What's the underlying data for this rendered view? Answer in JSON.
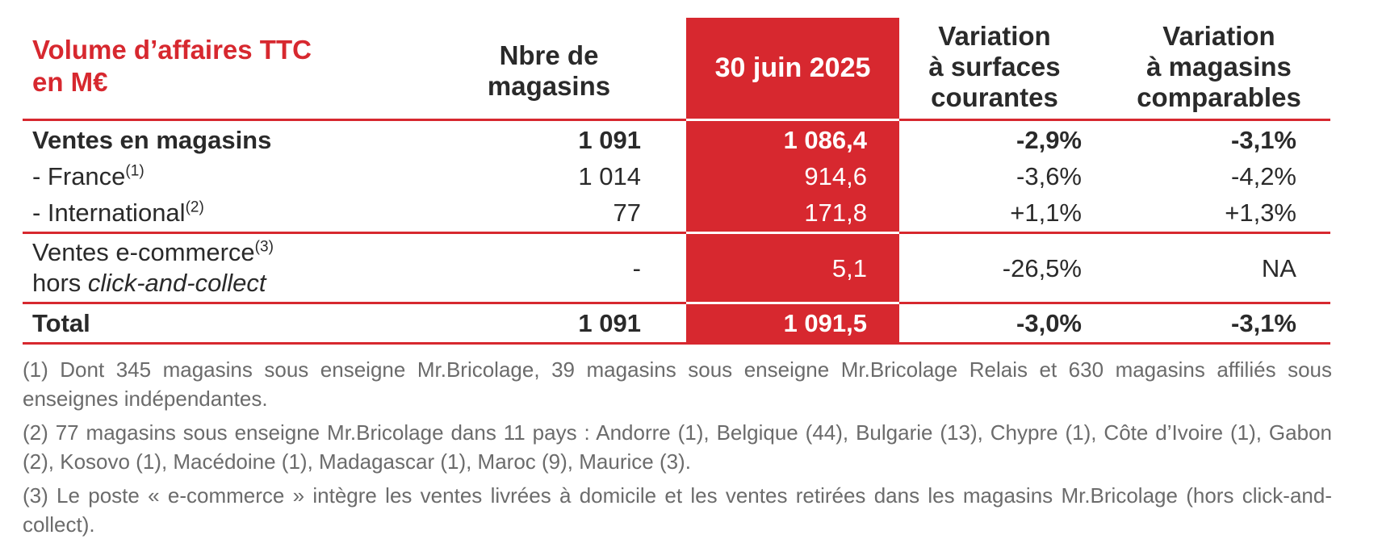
{
  "header": {
    "title_line1": "Volume d’affaires TTC",
    "title_line2": "en M€",
    "nbre_line1": "Nbre de",
    "nbre_line2": "magasins",
    "date": "30 juin 2025",
    "var1_line1": "Variation",
    "var1_line2": "à surfaces",
    "var1_line3": "courantes",
    "var2_line1": "Variation",
    "var2_line2": "à magasins",
    "var2_line3": "comparables"
  },
  "rows": [
    {
      "label": "Ventes en magasins",
      "sup": "",
      "nbre": "1 091",
      "value": "1 086,4",
      "var_courantes": "-2,9%",
      "var_comparables": "-3,1%"
    },
    {
      "label": "- France",
      "sup": "(1)",
      "nbre": "1 014",
      "value": "914,6",
      "var_courantes": "-3,6%",
      "var_comparables": "-4,2%"
    },
    {
      "label": "- International",
      "sup": "(2)",
      "nbre": "77",
      "value": "171,8",
      "var_courantes": "+1,1%",
      "var_comparables": "+1,3%"
    },
    {
      "label": "Ventes e-commerce",
      "sup": "(3)",
      "label_line2": "hors ",
      "label_line2_italic": "click-and-collect",
      "nbre": "-",
      "value": "5,1",
      "var_courantes": "-26,5%",
      "var_comparables": "NA"
    },
    {
      "label": "Total",
      "sup": "",
      "nbre": "1 091",
      "value": "1 091,5",
      "var_courantes": "-3,0%",
      "var_comparables": "-3,1%"
    }
  ],
  "notes": [
    "(1) Dont 345 magasins sous enseigne Mr.Bricolage, 39 magasins sous enseigne Mr.Bricolage Relais et 630 magasins affiliés sous enseignes indépendantes.",
    "(2) 77 magasins sous enseigne Mr.Bricolage dans 11 pays : Andorre (1), Belgique (44), Bulgarie (13), Chypre (1), Côte d’Ivoire (1), Gabon (2), Kosovo (1), Macédoine (1), Madagascar (1), Maroc (9), Maurice (3).",
    "(3) Le poste « e-commerce » intègre les ventes livrées à domicile et les ventes retirées dans les magasins Mr.Bricolage (hors click-and-collect)."
  ],
  "colors": {
    "accent": "#d7282f",
    "text": "#2a2a2a",
    "notes": "#6b6b6b"
  }
}
